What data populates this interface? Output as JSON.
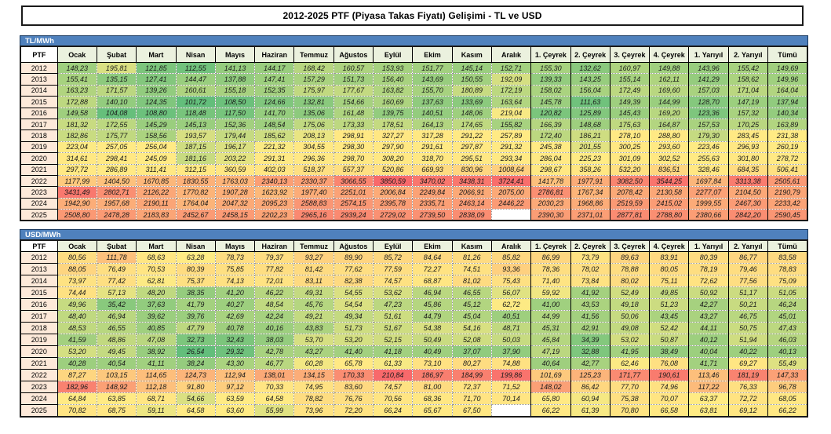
{
  "title": "2012-2025 PTF (Piyasa Takas Fiyatı) Gelişimi - TL ve USD",
  "theme": {
    "unit_bar_bg": "#4F81BD",
    "unit_bar_text": "#FFFFFF",
    "column_header_bg": "#EBF1DE",
    "year_column_bg": "#FDE9D9",
    "heatmap": {
      "low": "#63BE7B",
      "mid": "#FFEB84",
      "high": "#F8696B",
      "empty": "#FFFFFF",
      "midpoint": "median"
    }
  },
  "chart_data": [
    {
      "type": "heatmap",
      "title": "TL/MWh",
      "corner_label": "PTF",
      "columns": [
        "Ocak",
        "Şubat",
        "Mart",
        "Nisan",
        "Mayıs",
        "Haziran",
        "Temmuz",
        "Ağustos",
        "Eylül",
        "Ekim",
        "Kasım",
        "Aralık",
        "1. Çeyrek",
        "2. Çeyrek",
        "3. Çeyrek",
        "4. Çeyrek",
        "1. Yarıyıl",
        "2. Yarıyıl",
        "Tümü"
      ],
      "rows": [
        {
          "year": "2012",
          "values": [
            "148,23",
            "195,81",
            "121,85",
            "112,55",
            "141,13",
            "144,17",
            "168,42",
            "160,57",
            "153,93",
            "151,77",
            "145,14",
            "152,71",
            "155,30",
            "132,62",
            "160,97",
            "149,88",
            "143,96",
            "155,42",
            "149,69"
          ]
        },
        {
          "year": "2013",
          "values": [
            "155,41",
            "135,15",
            "127,41",
            "144,47",
            "137,88",
            "147,41",
            "157,29",
            "151,73",
            "156,40",
            "143,69",
            "150,55",
            "192,09",
            "139,33",
            "143,25",
            "155,14",
            "162,11",
            "141,29",
            "158,62",
            "149,96"
          ]
        },
        {
          "year": "2014",
          "values": [
            "163,23",
            "171,57",
            "139,26",
            "160,61",
            "155,18",
            "152,35",
            "175,97",
            "177,67",
            "163,82",
            "155,70",
            "180,89",
            "172,19",
            "158,02",
            "156,04",
            "172,49",
            "169,60",
            "157,03",
            "171,04",
            "164,04"
          ]
        },
        {
          "year": "2015",
          "values": [
            "172,88",
            "140,10",
            "124,35",
            "101,72",
            "108,50",
            "124,66",
            "132,81",
            "154,66",
            "160,69",
            "137,63",
            "133,69",
            "163,64",
            "145,78",
            "111,63",
            "149,39",
            "144,99",
            "128,70",
            "147,19",
            "137,94"
          ]
        },
        {
          "year": "2016",
          "values": [
            "149,58",
            "104,08",
            "108,80",
            "118,48",
            "117,50",
            "141,70",
            "135,06",
            "161,48",
            "139,75",
            "140,51",
            "148,06",
            "219,04",
            "120,82",
            "125,89",
            "145,43",
            "169,20",
            "123,36",
            "157,32",
            "140,34"
          ]
        },
        {
          "year": "2017",
          "values": [
            "181,32",
            "172,55",
            "145,29",
            "145,13",
            "152,36",
            "148,54",
            "175,06",
            "173,33",
            "178,51",
            "164,13",
            "174,65",
            "155,82",
            "166,39",
            "148,68",
            "175,63",
            "164,87",
            "157,53",
            "170,25",
            "163,89"
          ]
        },
        {
          "year": "2018",
          "values": [
            "182,86",
            "175,77",
            "158,56",
            "193,57",
            "179,44",
            "185,62",
            "208,13",
            "298,91",
            "327,27",
            "317,28",
            "291,22",
            "257,89",
            "172,40",
            "186,21",
            "278,10",
            "288,80",
            "179,30",
            "283,45",
            "231,38"
          ]
        },
        {
          "year": "2019",
          "values": [
            "223,04",
            "257,05",
            "256,04",
            "187,15",
            "196,17",
            "221,32",
            "304,55",
            "298,30",
            "297,90",
            "291,61",
            "297,87",
            "291,32",
            "245,38",
            "201,55",
            "300,25",
            "293,60",
            "223,46",
            "296,93",
            "260,19"
          ]
        },
        {
          "year": "2020",
          "values": [
            "314,61",
            "298,41",
            "245,09",
            "181,16",
            "203,22",
            "291,31",
            "296,36",
            "298,70",
            "308,20",
            "318,70",
            "295,51",
            "293,34",
            "286,04",
            "225,23",
            "301,09",
            "302,52",
            "255,63",
            "301,80",
            "278,72"
          ]
        },
        {
          "year": "2021",
          "values": [
            "297,72",
            "286,89",
            "311,41",
            "312,15",
            "360,59",
            "402,03",
            "518,37",
            "557,37",
            "520,86",
            "669,93",
            "830,96",
            "1008,64",
            "298,67",
            "358,26",
            "532,20",
            "836,51",
            "328,46",
            "684,35",
            "506,41"
          ]
        },
        {
          "year": "2022",
          "values": [
            "1177,99",
            "1404,50",
            "1670,85",
            "1830,55",
            "1763,03",
            "2340,13",
            "2330,37",
            "3066,55",
            "3850,59",
            "3470,02",
            "3438,31",
            "3724,41",
            "1417,78",
            "1977,91",
            "3082,50",
            "3544,25",
            "1697,84",
            "3313,38",
            "2505,61"
          ]
        },
        {
          "year": "2023",
          "values": [
            "3431,49",
            "2802,71",
            "2126,22",
            "1770,82",
            "1907,28",
            "1623,92",
            "1977,40",
            "2251,01",
            "2006,84",
            "2249,84",
            "2066,91",
            "2075,00",
            "2786,81",
            "1767,34",
            "2078,42",
            "2130,58",
            "2277,07",
            "2104,50",
            "2190,79"
          ]
        },
        {
          "year": "2024",
          "values": [
            "1942,90",
            "1957,68",
            "2190,11",
            "1764,04",
            "2047,32",
            "2095,23",
            "2588,83",
            "2574,15",
            "2395,78",
            "2335,71",
            "2463,14",
            "2446,22",
            "2030,23",
            "1968,86",
            "2519,59",
            "2415,02",
            "1999,55",
            "2467,30",
            "2233,42"
          ]
        },
        {
          "year": "2025",
          "values": [
            "2508,80",
            "2478,28",
            "2183,83",
            "2452,67",
            "2458,15",
            "2202,23",
            "2965,16",
            "2939,24",
            "2729,02",
            "2739,50",
            "2838,09",
            null,
            "2390,30",
            "2371,01",
            "2877,81",
            "2788,80",
            "2380,66",
            "2842,20",
            "2590,45"
          ]
        }
      ]
    },
    {
      "type": "heatmap",
      "title": "USD/MWh",
      "corner_label": "PTF",
      "columns": [
        "Ocak",
        "Şubat",
        "Mart",
        "Nisan",
        "Mayıs",
        "Haziran",
        "Temmuz",
        "Ağustos",
        "Eylül",
        "Ekim",
        "Kasım",
        "Aralık",
        "1. Çeyrek",
        "2. Çeyrek",
        "3. Çeyrek",
        "4. Çeyrek",
        "1. Yarıyıl",
        "2. Yarıyıl",
        "Tümü"
      ],
      "rows": [
        {
          "year": "2012",
          "values": [
            "80,56",
            "111,78",
            "68,63",
            "63,28",
            "78,73",
            "79,37",
            "93,27",
            "89,90",
            "85,72",
            "84,64",
            "81,26",
            "85,82",
            "86,99",
            "73,79",
            "89,63",
            "83,91",
            "80,39",
            "86,77",
            "83,58"
          ]
        },
        {
          "year": "2013",
          "values": [
            "88,05",
            "76,49",
            "70,53",
            "80,39",
            "75,85",
            "77,82",
            "81,42",
            "77,62",
            "77,59",
            "72,27",
            "74,51",
            "93,36",
            "78,36",
            "78,02",
            "78,88",
            "80,05",
            "78,19",
            "79,46",
            "78,83"
          ]
        },
        {
          "year": "2014",
          "values": [
            "73,97",
            "77,42",
            "62,81",
            "75,37",
            "74,13",
            "72,01",
            "83,11",
            "82,38",
            "74,57",
            "68,87",
            "81,02",
            "75,43",
            "71,40",
            "73,84",
            "80,02",
            "75,11",
            "72,62",
            "77,56",
            "75,09"
          ]
        },
        {
          "year": "2015",
          "values": [
            "74,44",
            "57,13",
            "48,20",
            "38,35",
            "41,20",
            "46,22",
            "49,31",
            "54,55",
            "53,62",
            "46,94",
            "46,55",
            "56,07",
            "59,92",
            "41,92",
            "52,49",
            "49,85",
            "50,92",
            "51,17",
            "51,05"
          ]
        },
        {
          "year": "2016",
          "values": [
            "49,96",
            "35,42",
            "37,63",
            "41,79",
            "40,27",
            "48,54",
            "45,76",
            "54,54",
            "47,23",
            "45,86",
            "45,12",
            "62,72",
            "41,00",
            "43,53",
            "49,18",
            "51,23",
            "42,27",
            "50,21",
            "46,24"
          ]
        },
        {
          "year": "2017",
          "values": [
            "48,40",
            "46,94",
            "39,62",
            "39,76",
            "42,69",
            "42,24",
            "49,21",
            "49,34",
            "51,61",
            "44,79",
            "45,04",
            "40,51",
            "44,99",
            "41,56",
            "50,06",
            "43,45",
            "43,27",
            "46,75",
            "45,01"
          ]
        },
        {
          "year": "2018",
          "values": [
            "48,53",
            "46,55",
            "40,85",
            "47,79",
            "40,78",
            "40,16",
            "43,83",
            "51,73",
            "51,67",
            "54,38",
            "54,16",
            "48,71",
            "45,31",
            "42,91",
            "49,08",
            "52,42",
            "44,11",
            "50,75",
            "47,43"
          ]
        },
        {
          "year": "2019",
          "values": [
            "41,59",
            "48,86",
            "47,08",
            "32,73",
            "32,43",
            "38,03",
            "53,70",
            "53,20",
            "52,15",
            "50,49",
            "52,08",
            "50,03",
            "45,84",
            "34,39",
            "53,02",
            "50,87",
            "40,12",
            "51,94",
            "46,03"
          ]
        },
        {
          "year": "2020",
          "values": [
            "53,20",
            "49,45",
            "38,92",
            "26,54",
            "29,32",
            "42,78",
            "43,27",
            "41,40",
            "41,18",
            "40,49",
            "37,07",
            "37,90",
            "47,19",
            "32,88",
            "41,95",
            "38,49",
            "40,04",
            "40,22",
            "40,13"
          ]
        },
        {
          "year": "2021",
          "values": [
            "40,28",
            "40,54",
            "41,11",
            "38,24",
            "43,30",
            "46,77",
            "60,28",
            "65,78",
            "61,33",
            "73,10",
            "80,27",
            "74,88",
            "40,64",
            "42,77",
            "62,46",
            "76,08",
            "41,71",
            "69,27",
            "55,49"
          ]
        },
        {
          "year": "2022",
          "values": [
            "87,27",
            "103,15",
            "114,65",
            "124,73",
            "112,94",
            "138,01",
            "134,15",
            "170,33",
            "210,84",
            "186,97",
            "184,99",
            "199,86",
            "101,69",
            "125,23",
            "171,77",
            "190,61",
            "113,46",
            "181,19",
            "147,33"
          ]
        },
        {
          "year": "2023",
          "values": [
            "182,96",
            "148,92",
            "112,18",
            "91,80",
            "97,12",
            "70,33",
            "74,95",
            "83,60",
            "74,57",
            "81,00",
            "72,37",
            "71,52",
            "148,02",
            "86,42",
            "77,70",
            "74,96",
            "117,22",
            "76,33",
            "96,78"
          ]
        },
        {
          "year": "2024",
          "values": [
            "64,84",
            "63,85",
            "68,71",
            "54,66",
            "63,59",
            "64,58",
            "78,82",
            "76,76",
            "70,56",
            "68,36",
            "71,70",
            "70,14",
            "65,80",
            "60,94",
            "75,38",
            "70,07",
            "63,37",
            "72,72",
            "68,05"
          ]
        },
        {
          "year": "2025",
          "values": [
            "70,82",
            "68,75",
            "59,11",
            "64,58",
            "63,60",
            "55,99",
            "73,96",
            "72,20",
            "66,24",
            "65,67",
            "67,50",
            null,
            "66,22",
            "61,39",
            "70,80",
            "66,58",
            "63,81",
            "69,12",
            "66,22"
          ]
        }
      ]
    }
  ]
}
